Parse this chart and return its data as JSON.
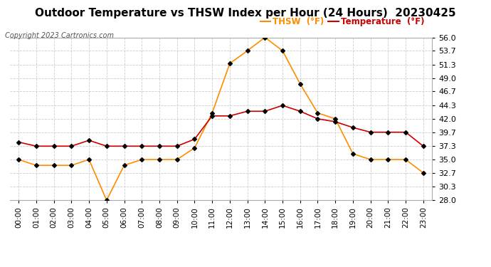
{
  "title": "Outdoor Temperature vs THSW Index per Hour (24 Hours)  20230425",
  "copyright": "Copyright 2023 Cartronics.com",
  "legend_thsw": "THSW  (°F)",
  "legend_temp": "Temperature  (°F)",
  "hours": [
    "00:00",
    "01:00",
    "02:00",
    "03:00",
    "04:00",
    "05:00",
    "06:00",
    "07:00",
    "08:00",
    "09:00",
    "10:00",
    "11:00",
    "12:00",
    "13:00",
    "14:00",
    "15:00",
    "16:00",
    "17:00",
    "18:00",
    "19:00",
    "20:00",
    "21:00",
    "22:00",
    "23:00"
  ],
  "thsw": [
    35.0,
    34.0,
    34.0,
    34.0,
    35.0,
    28.0,
    34.0,
    35.0,
    35.0,
    35.0,
    37.0,
    43.0,
    51.5,
    53.7,
    56.0,
    53.7,
    48.0,
    43.0,
    42.0,
    36.0,
    35.0,
    35.0,
    35.0,
    32.7
  ],
  "temperature": [
    38.0,
    37.3,
    37.3,
    37.3,
    38.3,
    37.3,
    37.3,
    37.3,
    37.3,
    37.3,
    38.5,
    42.5,
    42.5,
    43.3,
    43.3,
    44.3,
    43.3,
    42.0,
    41.5,
    40.5,
    39.7,
    39.7,
    39.7,
    37.3
  ],
  "thsw_color": "#FF8C00",
  "temp_color": "#CC0000",
  "marker_color": "#000000",
  "ylim_min": 28.0,
  "ylim_max": 56.0,
  "yticks": [
    28.0,
    30.3,
    32.7,
    35.0,
    37.3,
    39.7,
    42.0,
    44.3,
    46.7,
    49.0,
    51.3,
    53.7,
    56.0
  ],
  "background_color": "#ffffff",
  "grid_color": "#cccccc",
  "title_fontsize": 11,
  "copyright_fontsize": 7,
  "legend_fontsize": 8.5,
  "tick_fontsize": 8,
  "xlabel_fontsize": 7.5
}
